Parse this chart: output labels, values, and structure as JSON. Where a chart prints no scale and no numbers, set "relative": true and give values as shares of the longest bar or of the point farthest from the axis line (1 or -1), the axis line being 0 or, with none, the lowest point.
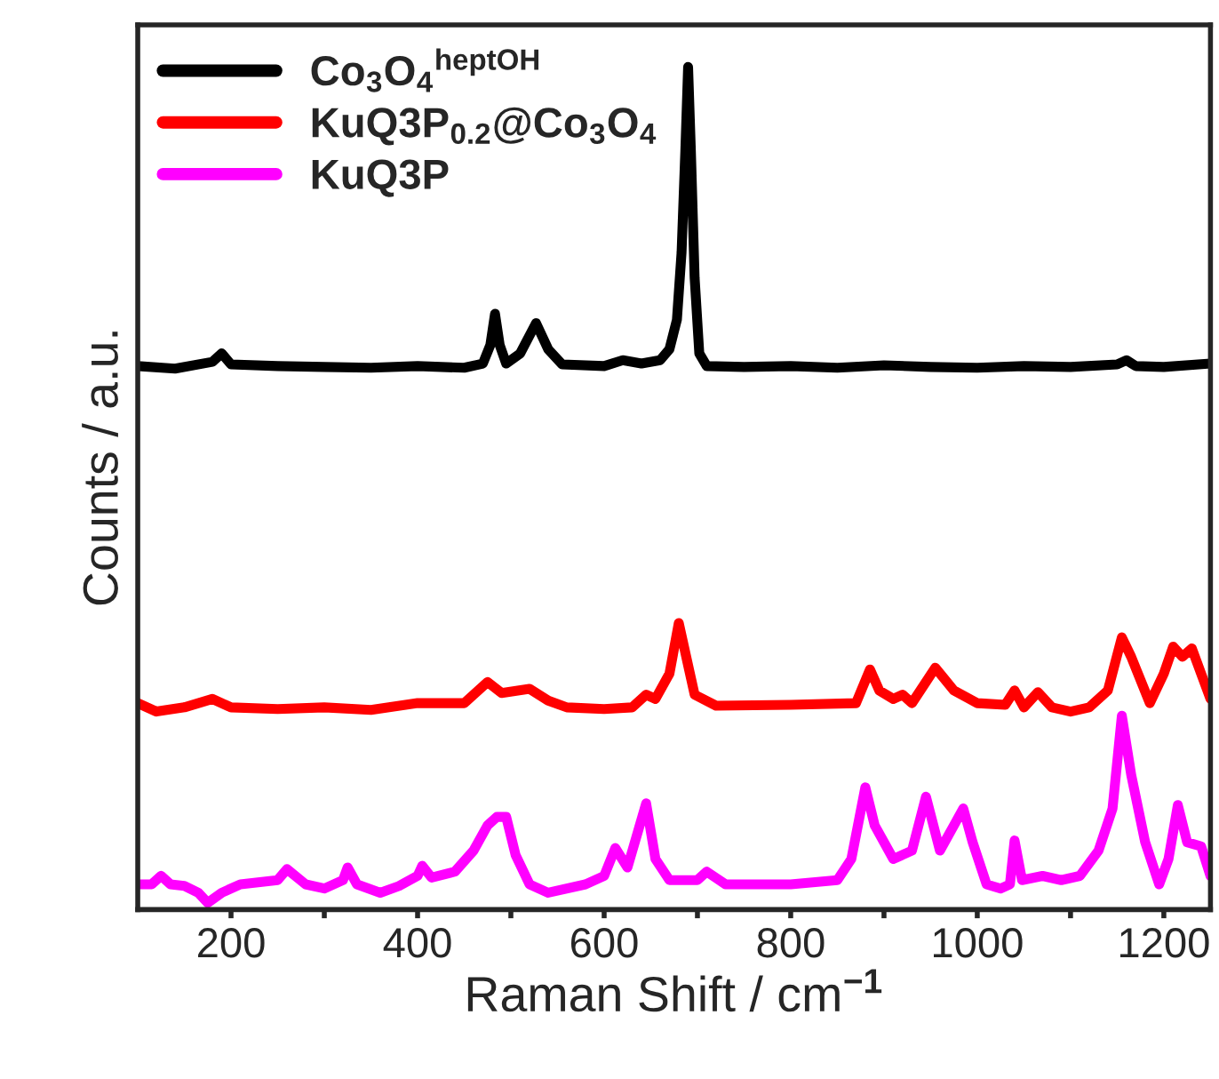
{
  "chart_data": {
    "type": "line",
    "xlabel": "Raman Shift / cm$^{−1}$",
    "ylabel": "Counts / a.u.",
    "relative": true,
    "xlim": [
      100,
      1250
    ],
    "xticks": [
      200,
      {
        "value": 300,
        "label": null
      },
      400,
      {
        "value": 500,
        "label": null
      },
      600,
      {
        "value": 700,
        "label": null
      },
      800,
      {
        "value": 900,
        "label": null
      },
      1000,
      {
        "value": 1100,
        "label": null
      },
      1200
    ],
    "legend": "top left",
    "grid": false,
    "line_style": "solid",
    "marker": "none",
    "series": [
      {
        "name": "Co$_{3}$O$_{4}$$^{heptOH}$",
        "color": "#000000",
        "x": [
          100,
          140,
          180,
          190,
          200,
          250,
          300,
          350,
          400,
          450,
          470,
          478,
          483,
          488,
          495,
          510,
          527,
          540,
          555,
          600,
          620,
          640,
          660,
          670,
          678,
          683,
          687,
          690,
          693,
          697,
          702,
          710,
          750,
          800,
          850,
          900,
          950,
          1000,
          1050,
          1100,
          1150,
          1160,
          1170,
          1200,
          1250
        ],
        "values": [
          0.645,
          0.642,
          0.65,
          0.66,
          0.647,
          0.645,
          0.644,
          0.643,
          0.645,
          0.643,
          0.648,
          0.67,
          0.707,
          0.67,
          0.648,
          0.66,
          0.696,
          0.665,
          0.647,
          0.645,
          0.652,
          0.648,
          0.652,
          0.665,
          0.7,
          0.78,
          0.9,
          1.0,
          0.9,
          0.75,
          0.66,
          0.645,
          0.644,
          0.645,
          0.643,
          0.646,
          0.644,
          0.643,
          0.645,
          0.644,
          0.647,
          0.652,
          0.645,
          0.644,
          0.648
        ]
      },
      {
        "name": "KuQ3P$_{0.2}$@Co$_{3}$O$_{4}$",
        "color": "#ff0000",
        "x": [
          100,
          110,
          120,
          150,
          180,
          200,
          250,
          300,
          350,
          400,
          450,
          475,
          490,
          520,
          540,
          560,
          600,
          630,
          645,
          655,
          670,
          680,
          688,
          697,
          720,
          800,
          870,
          885,
          895,
          910,
          920,
          930,
          955,
          975,
          1000,
          1030,
          1040,
          1050,
          1065,
          1080,
          1100,
          1120,
          1140,
          1155,
          1165,
          1185,
          1200,
          1210,
          1220,
          1230,
          1250
        ],
        "values": [
          0.245,
          0.24,
          0.235,
          0.24,
          0.25,
          0.24,
          0.238,
          0.24,
          0.237,
          0.245,
          0.245,
          0.27,
          0.257,
          0.262,
          0.248,
          0.24,
          0.238,
          0.24,
          0.255,
          0.25,
          0.28,
          0.34,
          0.3,
          0.255,
          0.242,
          0.243,
          0.245,
          0.285,
          0.26,
          0.25,
          0.255,
          0.245,
          0.287,
          0.26,
          0.245,
          0.243,
          0.26,
          0.24,
          0.258,
          0.24,
          0.235,
          0.24,
          0.26,
          0.323,
          0.3,
          0.245,
          0.28,
          0.312,
          0.3,
          0.31,
          0.25
        ]
      },
      {
        "name": "KuQ3P",
        "color": "#ff00ff",
        "x": [
          100,
          115,
          125,
          135,
          150,
          165,
          175,
          190,
          210,
          250,
          260,
          280,
          300,
          320,
          325,
          335,
          360,
          380,
          400,
          405,
          415,
          440,
          460,
          475,
          485,
          495,
          505,
          520,
          540,
          580,
          600,
          612,
          625,
          645,
          655,
          670,
          700,
          710,
          730,
          800,
          850,
          865,
          880,
          890,
          910,
          930,
          945,
          960,
          975,
          985,
          995,
          1010,
          1025,
          1035,
          1040,
          1048,
          1070,
          1090,
          1110,
          1130,
          1145,
          1155,
          1165,
          1180,
          1195,
          1205,
          1215,
          1225,
          1240,
          1250
        ],
        "values": [
          0.03,
          0.03,
          0.04,
          0.03,
          0.028,
          0.02,
          0.008,
          0.02,
          0.03,
          0.035,
          0.048,
          0.03,
          0.025,
          0.035,
          0.05,
          0.03,
          0.02,
          0.028,
          0.04,
          0.052,
          0.038,
          0.045,
          0.07,
          0.1,
          0.11,
          0.11,
          0.065,
          0.03,
          0.02,
          0.03,
          0.04,
          0.073,
          0.05,
          0.126,
          0.06,
          0.035,
          0.035,
          0.045,
          0.03,
          0.03,
          0.035,
          0.06,
          0.145,
          0.1,
          0.06,
          0.07,
          0.134,
          0.07,
          0.1,
          0.12,
          0.08,
          0.03,
          0.025,
          0.03,
          0.082,
          0.035,
          0.04,
          0.035,
          0.04,
          0.07,
          0.12,
          0.23,
          0.16,
          0.08,
          0.03,
          0.06,
          0.124,
          0.08,
          0.075,
          0.04
        ]
      }
    ]
  }
}
